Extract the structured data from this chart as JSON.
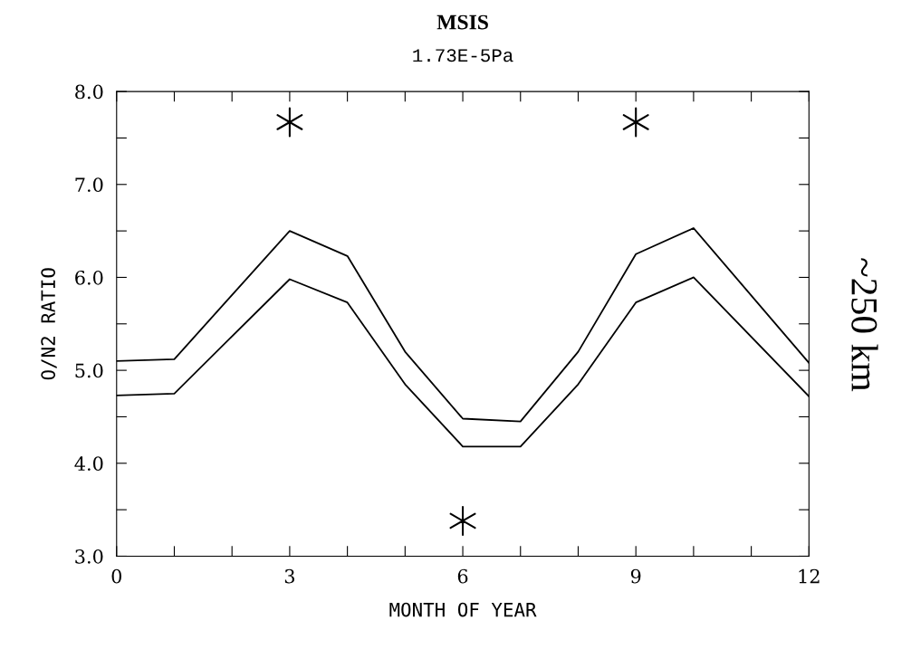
{
  "chart_data": {
    "type": "line",
    "title": "MSIS",
    "subtitle": "1.73E-5Pa",
    "xlabel": "MONTH OF YEAR",
    "ylabel": "O/N2 RATIO",
    "annotations": [
      "~250 km"
    ],
    "xlim": [
      0,
      12
    ],
    "ylim": [
      3.0,
      8.0
    ],
    "xticks": [
      0,
      {
        "value": 1,
        "label": null
      },
      {
        "value": 2,
        "label": null
      },
      3,
      {
        "value": 4,
        "label": null
      },
      {
        "value": 5,
        "label": null
      },
      6,
      {
        "value": 7,
        "label": null
      },
      {
        "value": 8,
        "label": null
      },
      9,
      {
        "value": 10,
        "label": null
      },
      {
        "value": 11,
        "label": null
      },
      12
    ],
    "yticks": [
      {
        "value": 3.0,
        "label": "3.0"
      },
      {
        "value": 3.5,
        "label": null
      },
      {
        "value": 4.0,
        "label": "4.0"
      },
      {
        "value": 4.5,
        "label": null
      },
      {
        "value": 5.0,
        "label": "5.0"
      },
      {
        "value": 5.5,
        "label": null
      },
      {
        "value": 6.0,
        "label": "6.0"
      },
      {
        "value": 6.5,
        "label": null
      },
      {
        "value": 7.0,
        "label": "7.0"
      },
      {
        "value": 7.5,
        "label": null
      },
      {
        "value": 8.0,
        "label": "8.0"
      }
    ],
    "grid": false,
    "legend": false,
    "series": [
      {
        "color": "#000000",
        "x": [
          0,
          1,
          3,
          4,
          5,
          6,
          7,
          8,
          9,
          10,
          12
        ],
        "values": [
          5.1,
          5.12,
          6.5,
          6.23,
          5.2,
          4.48,
          4.45,
          5.2,
          6.25,
          6.53,
          5.08
        ]
      },
      {
        "color": "#000000",
        "x": [
          0,
          1,
          3,
          4,
          5,
          6,
          7,
          8,
          9,
          10,
          12
        ],
        "values": [
          4.73,
          4.75,
          5.98,
          5.73,
          4.85,
          4.18,
          4.18,
          4.85,
          5.73,
          6.0,
          4.72
        ]
      },
      {
        "type": "scatter",
        "marker": "cross",
        "color": "#000000",
        "x": [
          3,
          6,
          9
        ],
        "values": [
          7.67,
          3.38,
          7.67
        ]
      }
    ]
  }
}
